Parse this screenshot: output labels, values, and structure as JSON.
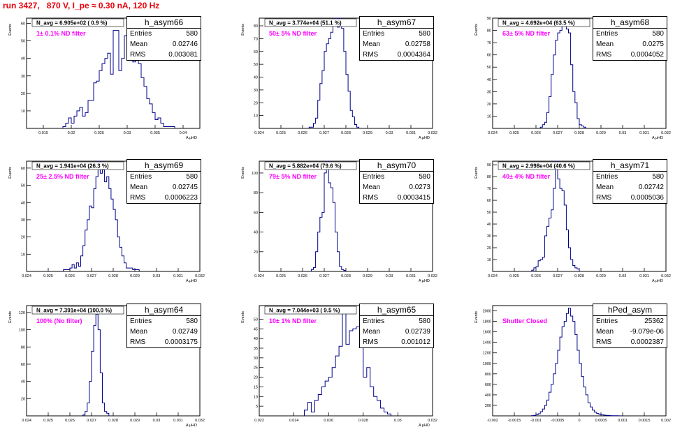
{
  "header": {
    "run_title": "run 3427,   870 V, I_pe ≈ 0.30 nA, 120 Hz"
  },
  "colors": {
    "title": "#e8000b",
    "histogram": "#00008b",
    "filter_label": "#ff00ff"
  },
  "stat_labels": {
    "entries": "Entries",
    "mean": "Mean",
    "rms": "RMS"
  },
  "chart_data": [
    {
      "type": "bar",
      "name": "h_asym66",
      "ylabel": "Events",
      "xlabel": "A_{μHD}",
      "navg": "N_avg = 6.905e+02 ( 0.9 %)",
      "filter": "1± 0.1% ND filter",
      "entries": "580",
      "mean": "0.02746",
      "rms": "0.003081",
      "xlim": [
        0.012,
        0.043
      ],
      "ylim": [
        0,
        63
      ],
      "xticks": [
        0.015,
        0.02,
        0.025,
        0.03,
        0.035,
        0.04
      ],
      "xticklabels": [
        "0.015",
        "0.02",
        "0.025",
        "0.03",
        "0.035",
        "0.04"
      ],
      "yticks": [
        10,
        20,
        30,
        40,
        50,
        60
      ],
      "bin_start": 0.0185,
      "bin_width": 0.0005,
      "values": [
        1,
        3,
        6,
        3,
        7,
        10,
        12,
        7,
        9,
        16,
        16,
        26,
        27,
        33,
        37,
        40,
        43,
        31,
        56,
        56,
        33,
        40,
        53,
        58,
        43,
        38,
        41,
        37,
        29,
        24,
        17,
        14,
        9,
        5,
        6,
        3,
        1,
        1,
        1,
        1
      ]
    },
    {
      "type": "bar",
      "name": "h_asym67",
      "ylabel": "Events",
      "xlabel": "A_{μHD}",
      "navg": "N_avg = 3.774e+04 (51.1 %)",
      "filter": "50± 5% ND filter",
      "entries": "580",
      "mean": "0.02758",
      "rms": "0.0004364",
      "xlim": [
        0.024,
        0.032
      ],
      "ylim": [
        0,
        86
      ],
      "xticks": [
        0.024,
        0.025,
        0.026,
        0.027,
        0.028,
        0.029,
        0.03,
        0.031,
        0.032
      ],
      "xticklabels": [
        "0.024",
        "0.025",
        "0.026",
        "0.027",
        "0.028",
        "0.029",
        "0.03",
        "0.031",
        "0.032"
      ],
      "yticks": [
        10,
        20,
        30,
        40,
        50,
        60,
        70,
        80
      ],
      "bin_start": 0.0263,
      "bin_width": 0.0001,
      "values": [
        1,
        1,
        4,
        8,
        22,
        35,
        45,
        60,
        66,
        70,
        75,
        80,
        89,
        79,
        90,
        78,
        60,
        42,
        29,
        14,
        9,
        3,
        1
      ]
    },
    {
      "type": "bar",
      "name": "h_asym68",
      "ylabel": "Events",
      "xlabel": "A_{μHD}",
      "navg": "N_avg = 4.692e+04 (63.5 %)",
      "filter": "63± 5% ND filter",
      "entries": "580",
      "mean": "0.0275",
      "rms": "0.0004052",
      "xlim": [
        0.024,
        0.032
      ],
      "ylim": [
        0,
        90
      ],
      "xticks": [
        0.024,
        0.025,
        0.026,
        0.027,
        0.028,
        0.029,
        0.03,
        0.031,
        0.032
      ],
      "xticklabels": [
        "0.024",
        "0.025",
        "0.026",
        "0.027",
        "0.028",
        "0.029",
        "0.03",
        "0.031",
        "0.032"
      ],
      "yticks": [
        10,
        20,
        30,
        40,
        50,
        60,
        70,
        80,
        90
      ],
      "bin_start": 0.0262,
      "bin_width": 0.0001,
      "values": [
        1,
        3,
        5,
        13,
        26,
        44,
        60,
        72,
        78,
        80,
        87,
        86,
        81,
        78,
        52,
        30,
        21,
        8,
        3,
        2,
        1
      ]
    },
    {
      "type": "bar",
      "name": "h_asym69",
      "ylabel": "Events",
      "xlabel": "A_{μHD}",
      "navg": "N_avg = 1.941e+04 (26.3 %)",
      "filter": "25± 2.5% ND filter",
      "entries": "580",
      "mean": "0.02745",
      "rms": "0.0006223",
      "xlim": [
        0.024,
        0.032
      ],
      "ylim": [
        0,
        64
      ],
      "xticks": [
        0.024,
        0.025,
        0.026,
        0.027,
        0.028,
        0.029,
        0.03,
        0.031,
        0.032
      ],
      "xticklabels": [
        "0.024",
        "0.025",
        "0.026",
        "0.027",
        "0.028",
        "0.029",
        "0.03",
        "0.031",
        "0.032"
      ],
      "yticks": [
        10,
        20,
        30,
        40,
        50,
        60
      ],
      "bin_start": 0.0257,
      "bin_width": 0.0001,
      "values": [
        1,
        1,
        1,
        2,
        4,
        2,
        5,
        3,
        9,
        15,
        24,
        30,
        38,
        37,
        48,
        55,
        65,
        57,
        59,
        52,
        55,
        48,
        42,
        36,
        30,
        20,
        14,
        9,
        5,
        2,
        2,
        2,
        1,
        1,
        1
      ]
    },
    {
      "type": "bar",
      "name": "h_asym70",
      "ylabel": "Events",
      "xlabel": "A_{μHD}",
      "navg": "N_avg = 5.882e+04 (79.6 %)",
      "filter": "79± 5% ND filter",
      "entries": "580",
      "mean": "0.0273",
      "rms": "0.0003415",
      "xlim": [
        0.024,
        0.032
      ],
      "ylim": [
        0,
        112
      ],
      "xticks": [
        0.024,
        0.025,
        0.026,
        0.027,
        0.028,
        0.029,
        0.03,
        0.031,
        0.032
      ],
      "xticklabels": [
        "0.024",
        "0.025",
        "0.026",
        "0.027",
        "0.028",
        "0.029",
        "0.03",
        "0.031",
        "0.032"
      ],
      "yticks": [
        20,
        40,
        60,
        80,
        100
      ],
      "bin_start": 0.0264,
      "bin_width": 0.0001,
      "values": [
        2,
        4,
        20,
        40,
        55,
        60,
        100,
        116,
        90,
        85,
        70,
        40,
        20,
        5,
        2,
        1
      ]
    },
    {
      "type": "bar",
      "name": "h_asym71",
      "ylabel": "Events",
      "xlabel": "A_{μHD}",
      "navg": "N_avg = 2.998e+04 (40.6 %)",
      "filter": "40± 4% ND filter",
      "entries": "580",
      "mean": "0.02742",
      "rms": "0.0005036",
      "xlim": [
        0.024,
        0.032
      ],
      "ylim": [
        0,
        93
      ],
      "xticks": [
        0.024,
        0.025,
        0.026,
        0.027,
        0.028,
        0.029,
        0.03,
        0.031,
        0.032
      ],
      "xticklabels": [
        "0.024",
        "0.025",
        "0.026",
        "0.027",
        "0.028",
        "0.029",
        "0.03",
        "0.031",
        "0.032"
      ],
      "yticks": [
        10,
        20,
        30,
        40,
        50,
        60,
        70,
        80,
        90
      ],
      "bin_start": 0.0258,
      "bin_width": 0.0001,
      "values": [
        1,
        3,
        4,
        9,
        10,
        12,
        30,
        38,
        45,
        52,
        70,
        95,
        78,
        70,
        68,
        56,
        35,
        20,
        10,
        5,
        3,
        2
      ]
    },
    {
      "type": "bar",
      "name": "h_asym64",
      "ylabel": "Events",
      "xlabel": "A_{μHD}",
      "navg": "N_avg = 7.391e+04 (100.0 %)",
      "filter": "100% (No filter)",
      "entries": "580",
      "mean": "0.02749",
      "rms": "0.0003175",
      "xlim": [
        0.024,
        0.032
      ],
      "ylim": [
        0,
        128
      ],
      "xticks": [
        0.024,
        0.025,
        0.026,
        0.027,
        0.028,
        0.029,
        0.03,
        0.031,
        0.032
      ],
      "xticklabels": [
        "0.024",
        "0.025",
        "0.026",
        "0.027",
        "0.028",
        "0.029",
        "0.03",
        "0.031",
        "0.032"
      ],
      "yticks": [
        20,
        40,
        60,
        80,
        100,
        120
      ],
      "bin_start": 0.0266,
      "bin_width": 0.0001,
      "values": [
        1,
        5,
        15,
        40,
        75,
        105,
        118,
        100,
        50,
        15,
        5,
        3
      ]
    },
    {
      "type": "bar",
      "name": "h_asym65",
      "ylabel": "Events",
      "xlabel": "A_{μHD}",
      "navg": "N_avg = 7.044e+03 ( 9.5 %)",
      "filter": "10± 1% ND filter",
      "entries": "580",
      "mean": "0.02739",
      "rms": "0.001012",
      "xlim": [
        0.022,
        0.032
      ],
      "ylim": [
        0,
        57
      ],
      "xticks": [
        0.022,
        0.024,
        0.026,
        0.028,
        0.03,
        0.032
      ],
      "xticklabels": [
        "0.022",
        "0.024",
        "0.026",
        "0.028",
        "0.03",
        "0.032"
      ],
      "yticks": [
        5,
        10,
        15,
        20,
        25,
        30,
        35,
        40,
        45,
        50
      ],
      "bin_start": 0.0246,
      "bin_width": 0.0002,
      "values": [
        3,
        7,
        2,
        8,
        11,
        15,
        18,
        20,
        25,
        31,
        36,
        54,
        37,
        44,
        45,
        46,
        40,
        20,
        25,
        15,
        10,
        8,
        4,
        2,
        1
      ]
    },
    {
      "type": "bar",
      "name": "hPed_asym",
      "ylabel": "Events",
      "xlabel": "",
      "navg": "",
      "filter": "Shutter Closed",
      "entries": "25362",
      "mean": "-9.079e-06",
      "rms": "0.0002387",
      "xlim": [
        -0.002,
        0.002
      ],
      "ylim": [
        0,
        2100
      ],
      "xticks": [
        -0.002,
        -0.0015,
        -0.001,
        -0.0005,
        0,
        0.0005,
        0.001,
        0.0015,
        0.002
      ],
      "xticklabels": [
        "-0.002",
        "-0.0015",
        "-0.001",
        "-0.0005",
        "0",
        "0.0005",
        "0.001",
        "0.0015",
        "0.002"
      ],
      "yticks": [
        200,
        400,
        600,
        800,
        1000,
        1200,
        1400,
        1600,
        1800,
        2000
      ],
      "bin_start": -0.0011,
      "bin_width": 5e-05,
      "values": [
        5,
        10,
        20,
        40,
        80,
        130,
        200,
        300,
        450,
        600,
        800,
        1000,
        1250,
        1500,
        1700,
        1800,
        1950,
        2050,
        1900,
        1800,
        1550,
        1250,
        1000,
        750,
        550,
        400,
        250,
        170,
        110,
        70,
        45,
        30,
        20,
        15,
        10,
        8,
        5,
        4,
        3,
        2,
        1
      ]
    }
  ]
}
